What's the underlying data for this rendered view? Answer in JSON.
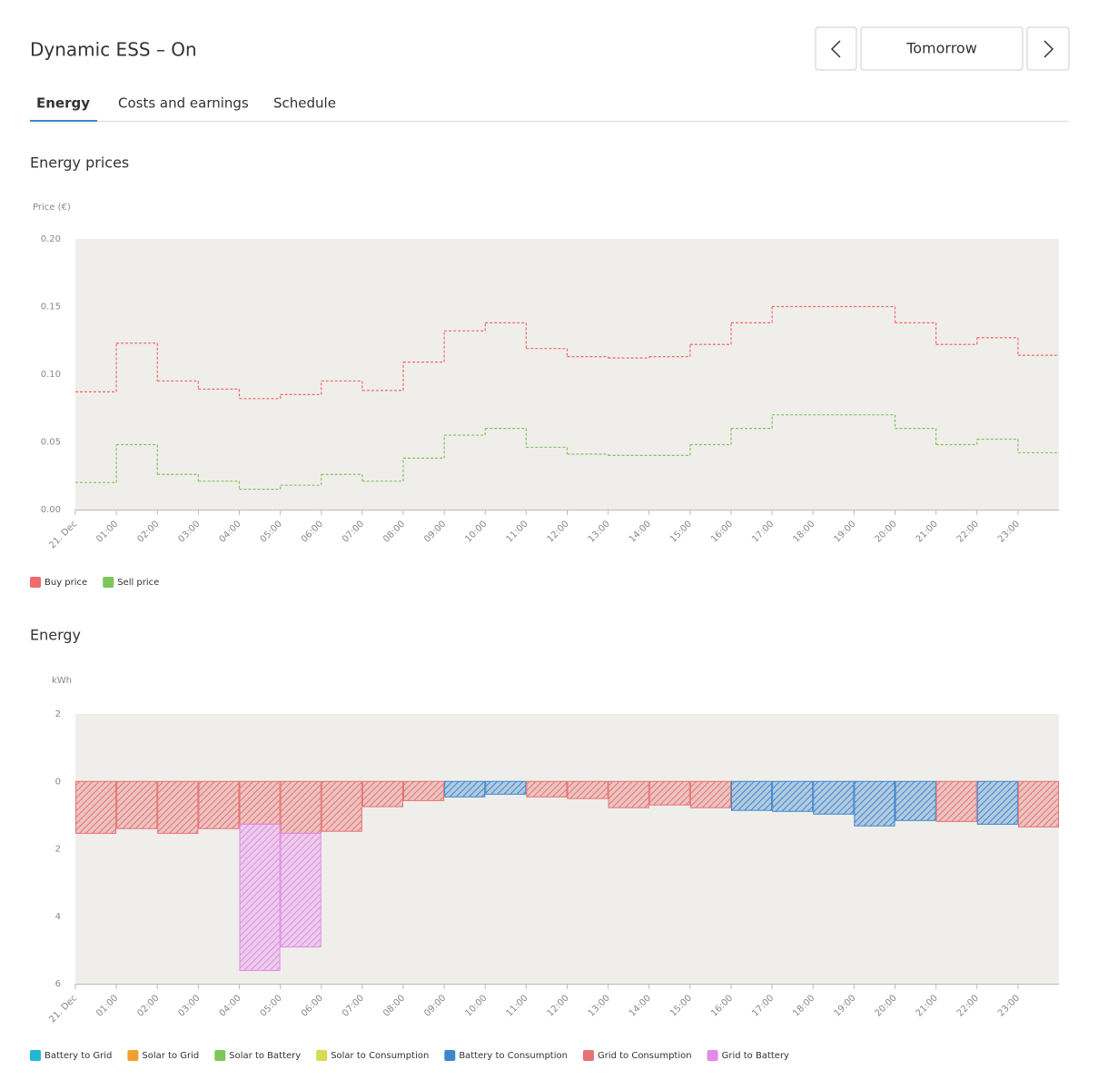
{
  "header": {
    "title": "Dynamic ESS – On",
    "date_nav": "Tomorrow"
  },
  "tabs": [
    "Energy",
    "Costs and earnings",
    "Schedule"
  ],
  "active_tab": 0,
  "chart_data": [
    {
      "type": "step",
      "title": "Energy prices",
      "y_label": "Price (€)",
      "categories": [
        "21. Dec",
        "01:00",
        "02:00",
        "03:00",
        "04:00",
        "05:00",
        "06:00",
        "07:00",
        "08:00",
        "09:00",
        "10:00",
        "11:00",
        "12:00",
        "13:00",
        "14:00",
        "15:00",
        "16:00",
        "17:00",
        "18:00",
        "19:00",
        "20:00",
        "21:00",
        "22:00",
        "23:00"
      ],
      "series": [
        {
          "name": "Buy price",
          "color": "#f06a6a",
          "values": [
            0.087,
            0.123,
            0.095,
            0.089,
            0.082,
            0.085,
            0.095,
            0.088,
            0.109,
            0.132,
            0.138,
            0.119,
            0.113,
            0.112,
            0.113,
            0.122,
            0.138,
            0.15,
            0.15,
            0.15,
            0.138,
            0.122,
            0.127,
            0.114
          ]
        },
        {
          "name": "Sell price",
          "color": "#7dc65a",
          "values": [
            0.02,
            0.048,
            0.026,
            0.021,
            0.015,
            0.018,
            0.026,
            0.021,
            0.038,
            0.055,
            0.06,
            0.046,
            0.041,
            0.04,
            0.04,
            0.048,
            0.06,
            0.07,
            0.07,
            0.07,
            0.06,
            0.048,
            0.052,
            0.042
          ]
        }
      ],
      "ylim": [
        0,
        0.2
      ],
      "yticks": [
        {
          "value": 0,
          "label": "0.00"
        },
        {
          "value": 0.05,
          "label": "0.05"
        },
        {
          "value": 0.1,
          "label": "0.10"
        },
        0.15,
        {
          "value": 0.2,
          "label": "0.20"
        }
      ]
    },
    {
      "type": "bar",
      "stacked": true,
      "title": "Energy",
      "y_label": "kWh",
      "categories": [
        "21. Dec",
        "01:00",
        "02:00",
        "03:00",
        "04:00",
        "05:00",
        "06:00",
        "07:00",
        "08:00",
        "09:00",
        "10:00",
        "11:00",
        "12:00",
        "13:00",
        "14:00",
        "15:00",
        "16:00",
        "17:00",
        "18:00",
        "19:00",
        "20:00",
        "21:00",
        "22:00",
        "23:00"
      ],
      "series": [
        {
          "name": "Battery to Grid",
          "color": "#1fb8d5",
          "values": [
            0,
            0,
            0,
            0,
            0,
            0,
            0,
            0,
            0,
            0,
            0,
            0,
            0,
            0,
            0,
            0,
            0,
            0,
            0,
            0,
            0,
            0,
            0,
            0
          ]
        },
        {
          "name": "Solar to Grid",
          "color": "#f0a030",
          "values": [
            0,
            0,
            0,
            0,
            0,
            0,
            0,
            0,
            0,
            0,
            0,
            0,
            0,
            0,
            0,
            0,
            0,
            0,
            0,
            0,
            0,
            0,
            0,
            0
          ]
        },
        {
          "name": "Solar to Battery",
          "color": "#7dc65a",
          "values": [
            0,
            0,
            0,
            0,
            0,
            0,
            0,
            0,
            0,
            0,
            0,
            0,
            0,
            0,
            0,
            0,
            0,
            0,
            0,
            0,
            0,
            0,
            0,
            0
          ]
        },
        {
          "name": "Solar to Consumption",
          "color": "#d4dc50",
          "values": [
            0,
            0,
            0,
            0,
            0,
            0,
            0,
            0,
            0,
            0,
            0,
            0,
            0,
            0,
            0,
            0,
            0,
            0,
            0,
            0,
            0,
            0,
            0,
            0
          ]
        },
        {
          "name": "Battery to Consumption",
          "color": "#3e86cc",
          "values": [
            0,
            0,
            0,
            0,
            0,
            0,
            0,
            0,
            0,
            -0.46,
            -0.38,
            0,
            0,
            0,
            0,
            0,
            -0.86,
            -0.89,
            -0.97,
            -1.32,
            -1.16,
            0,
            -1.27,
            0
          ]
        },
        {
          "name": "Grid to Consumption",
          "color": "#e57373",
          "values": [
            -1.54,
            -1.4,
            -1.54,
            -1.4,
            -1.27,
            -1.54,
            -1.48,
            -0.75,
            -0.57,
            0,
            0,
            -0.46,
            -0.51,
            -0.78,
            -0.7,
            -0.78,
            0,
            0,
            0,
            0,
            0,
            -1.19,
            0,
            -1.35
          ]
        },
        {
          "name": "Grid to Battery",
          "color": "#e28be6",
          "values": [
            0,
            0,
            0,
            0,
            -4.34,
            -3.37,
            0,
            0,
            0,
            0,
            0,
            0,
            0,
            0,
            0,
            0,
            0,
            0,
            0,
            0,
            0,
            0,
            0,
            0
          ]
        }
      ],
      "ylim": [
        -6,
        2
      ],
      "yticks": [
        2,
        0,
        {
          "value": -2,
          "label": "2"
        },
        {
          "value": -4,
          "label": "4"
        },
        {
          "value": -6,
          "label": "6"
        }
      ]
    }
  ]
}
